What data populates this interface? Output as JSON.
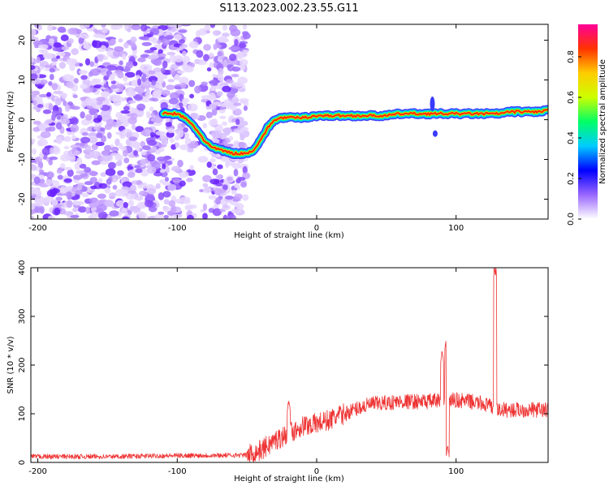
{
  "title": "S113.2023.002.23.55.G11",
  "chart_data": [
    {
      "type": "heatmap",
      "xlabel": "Height of straight line (km)",
      "ylabel": "Frequency (Hz)",
      "xlim": [
        -205,
        166
      ],
      "ylim": [
        -25,
        24
      ],
      "xticks": [
        -200,
        -100,
        0,
        100
      ],
      "yticks": [
        -20,
        -10,
        0,
        10,
        20
      ],
      "colorbar": {
        "label": "Normalized spectral amplitude",
        "range": [
          0,
          0.96
        ],
        "ticks": [
          0.0,
          0.2,
          0.4,
          0.6,
          0.8
        ],
        "colors": [
          "#ffffff",
          "#9966ff",
          "#0000ff",
          "#00ccff",
          "#00ff66",
          "#ccff00",
          "#ffcc00",
          "#ff3300",
          "#ff0099"
        ]
      },
      "ridge": {
        "x": [
          -110,
          -100,
          -95,
          -90,
          -85,
          -80,
          -75,
          -70,
          -65,
          -60,
          -55,
          -50,
          -45,
          -40,
          -35,
          -30,
          -25,
          -20,
          -10,
          0,
          10,
          20,
          30,
          40,
          50,
          60,
          70,
          80,
          90,
          100,
          110,
          120,
          130,
          140,
          150,
          160,
          166
        ],
        "y": [
          1.5,
          1.5,
          0.5,
          -1,
          -3,
          -5.5,
          -7,
          -7.5,
          -8,
          -8.5,
          -8.5,
          -8.5,
          -7.5,
          -5,
          -2,
          0,
          0.5,
          0.5,
          0.5,
          1,
          1,
          1,
          1,
          1,
          1,
          1.5,
          1.5,
          1.5,
          1.5,
          1.5,
          1.5,
          1.5,
          1.5,
          2,
          2,
          2,
          2.5
        ]
      }
    },
    {
      "type": "line",
      "xlabel": "Height of straight line (km)",
      "ylabel": "SNR (10 * v/v)",
      "xlim": [
        -205,
        166
      ],
      "ylim": [
        0,
        400
      ],
      "xticks": [
        -200,
        -100,
        0,
        100
      ],
      "yticks": [
        0,
        100,
        200,
        300,
        400
      ],
      "color": "#ee3333",
      "baseline": {
        "x": [
          -205,
          -150,
          -100,
          -50,
          -40,
          -30,
          -20,
          -10,
          0,
          10,
          20,
          30,
          40,
          50,
          60,
          70,
          80,
          90,
          100,
          110,
          120,
          130,
          140,
          150,
          166
        ],
        "y": [
          12,
          12,
          14,
          15,
          25,
          45,
          60,
          75,
          80,
          88,
          100,
          112,
          120,
          122,
          125,
          125,
          125,
          128,
          128,
          125,
          120,
          108,
          108,
          108,
          108
        ]
      },
      "peaks": [
        {
          "x": -20,
          "y": 130
        },
        {
          "x": 90,
          "y": 230
        },
        {
          "x": 93,
          "y": 255
        },
        {
          "x": 94,
          "y": 35
        },
        {
          "x": 128,
          "y": 405
        }
      ]
    }
  ]
}
